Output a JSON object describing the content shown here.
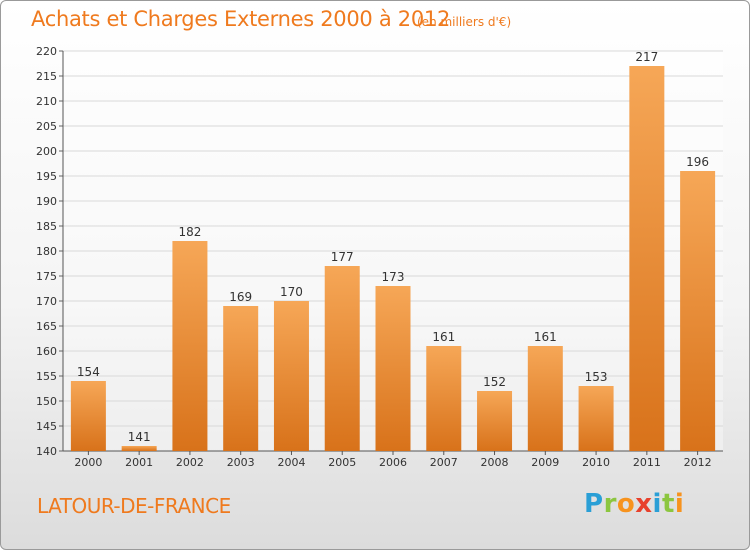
{
  "title": "Achats et Charges Externes 2000 à 2012",
  "subtitle": "(en milliers d'€)",
  "location": "LATOUR-DE-FRANCE",
  "brand": {
    "text": "Proxiti",
    "letters": [
      {
        "char": "P",
        "color": "#2a9fd6"
      },
      {
        "char": "r",
        "color": "#8cc63f"
      },
      {
        "char": "o",
        "color": "#f7931e"
      },
      {
        "char": "x",
        "color": "#e8412c"
      },
      {
        "char": "i",
        "color": "#2a9fd6"
      },
      {
        "char": "t",
        "color": "#8cc63f"
      },
      {
        "char": "i",
        "color": "#f7931e"
      }
    ]
  },
  "colors": {
    "accent": "#ef7a1e",
    "bar_light": "#f6a757",
    "bar_dark": "#d8721a",
    "grid": "#d9d9d9"
  },
  "chart_data": {
    "type": "bar",
    "categories": [
      "2000",
      "2001",
      "2002",
      "2003",
      "2004",
      "2005",
      "2006",
      "2007",
      "2008",
      "2009",
      "2010",
      "2011",
      "2012"
    ],
    "values": [
      154,
      141,
      182,
      169,
      170,
      177,
      173,
      161,
      152,
      161,
      153,
      217,
      196
    ],
    "data_labels": [
      "154",
      "141",
      "182",
      "169",
      "170",
      "177",
      "173",
      "161",
      "152",
      "161",
      "153",
      "217",
      "196"
    ],
    "ylim": [
      140,
      220
    ],
    "yticks": [
      140,
      145,
      150,
      155,
      160,
      165,
      170,
      175,
      180,
      185,
      190,
      195,
      200,
      205,
      210,
      215,
      220
    ],
    "grid": true,
    "title": "Achats et Charges Externes 2000 à 2012",
    "xlabel": "",
    "ylabel": ""
  }
}
